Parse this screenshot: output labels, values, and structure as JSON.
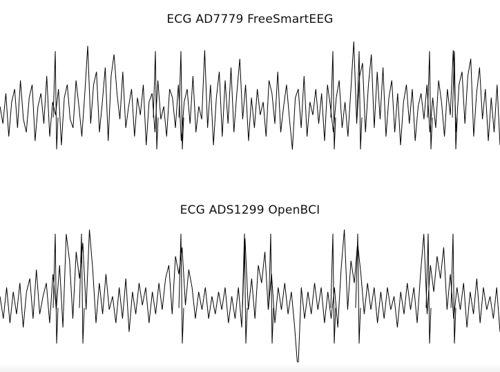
{
  "chart_data": [
    {
      "type": "line",
      "title": "ECG AD7779 FreeSmartEEG",
      "xlabel": "",
      "ylabel": "",
      "grid": false,
      "axes_visible": false,
      "color": "#000000",
      "beats": [
        80,
        225,
        262,
        482,
        520,
        622,
        658
      ],
      "ylim": [
        -1.6,
        1.6
      ],
      "series": [
        {
          "values": [
            0.1,
            -0.3,
            0.4,
            -0.6,
            0.2,
            0.5,
            -0.4,
            0.7,
            -0.2,
            -0.5,
            0.3,
            0.6,
            -0.7,
            0.1,
            0.4,
            -0.3,
            0.8,
            -0.6,
            0.2,
            -0.1,
            0.5,
            -0.8,
            0.3,
            0.6,
            -0.2,
            -0.4,
            0.7,
            0.1,
            -0.6,
            0.4,
            1.5,
            -0.3,
            0.6,
            0.9,
            -0.5,
            0.2,
            1.0,
            -0.7,
            0.8,
            1.3,
            0.4,
            -0.2,
            0.9,
            -0.4,
            0.1,
            0.5,
            -0.6,
            0.3,
            -0.1,
            0.6,
            -0.8,
            0.2,
            0.4,
            -0.5,
            0.7,
            -0.2,
            0.1,
            -0.6,
            0.5,
            0.3,
            -0.4,
            0.6,
            -0.7,
            0.2,
            0.5,
            -0.3,
            0.8,
            -0.5,
            0.1,
            -0.2,
            1.4,
            -0.4,
            0.6,
            -0.8,
            0.3,
            0.9,
            -0.6,
            0.7,
            -0.3,
            1.0,
            -0.5,
            0.4,
            1.2,
            -0.2,
            0.6,
            -0.7,
            0.3,
            -0.4,
            0.5,
            -0.1,
            0.2,
            -0.6,
            0.7,
            0.4,
            -0.3,
            0.9,
            -0.5,
            0.1,
            0.6,
            -0.2,
            -0.9,
            0.3,
            0.5,
            -0.4,
            0.8,
            -0.6,
            0.2,
            -0.1,
            0.5,
            -0.3,
            0.4,
            -0.7,
            0.6,
            0.1,
            -0.5,
            0.3,
            0.7,
            -0.4,
            0.2,
            -0.6,
            0.5,
            1.6,
            -0.3,
            0.8,
            1.1,
            -0.5,
            0.6,
            1.3,
            -0.4,
            0.9,
            -0.2,
            1.0,
            -0.6,
            0.3,
            0.7,
            -0.5,
            0.4,
            -0.8,
            0.2,
            0.6,
            -0.3,
            0.5,
            -0.7,
            0.1,
            0.4,
            -0.2,
            0.6,
            -0.5,
            0.3,
            -0.4,
            0.7,
            0.2,
            -0.6,
            0.5,
            -0.1,
            1.4,
            -0.5,
            0.6,
            0.9,
            -0.3,
            0.8,
            1.2,
            -0.6,
            0.4,
            1.0,
            -0.2,
            0.5,
            -0.7,
            0.3,
            -0.5,
            0.6,
            -0.8
          ]
        }
      ]
    },
    {
      "type": "line",
      "title": "ECG ADS1299 OpenBCI",
      "xlabel": "",
      "ylabel": "",
      "grid": false,
      "axes_visible": false,
      "color": "#000000",
      "beats": [
        80,
        118,
        262,
        354,
        392,
        482,
        518,
        620,
        656
      ],
      "ylim": [
        -1.6,
        1.6
      ],
      "series": [
        {
          "values": [
            0.1,
            -0.4,
            0.3,
            -0.5,
            0.2,
            -0.3,
            0.4,
            -0.6,
            0.2,
            0.5,
            -0.4,
            0.7,
            -0.3,
            0.1,
            0.4,
            -0.5,
            0.6,
            -0.2,
            0.8,
            -0.6,
            1.5,
            0.9,
            -0.4,
            1.1,
            0.5,
            1.3,
            -0.2,
            1.6,
            0.7,
            -0.5,
            0.4,
            -0.3,
            0.6,
            -0.2,
            0.1,
            -0.5,
            0.3,
            -0.4,
            0.5,
            -0.7,
            0.2,
            -0.3,
            0.4,
            -0.1,
            0.3,
            -0.5,
            0.2,
            -0.3,
            0.4,
            -0.2,
            0.5,
            0.8,
            -0.3,
            1.0,
            0.6,
            1.2,
            -0.1,
            0.7,
            0.3,
            -0.4,
            0.2,
            -0.2,
            0.3,
            -0.4,
            0.1,
            -0.3,
            0.2,
            -0.2,
            0.3,
            -0.5,
            0.1,
            -0.4,
            0.3,
            -0.6,
            1.4,
            -0.2,
            0.5,
            -0.4,
            0.8,
            0.4,
            1.1,
            -0.2,
            0.6,
            -0.5,
            0.3,
            -0.2,
            0.4,
            -0.3,
            0.2,
            -0.6,
            -1.6,
            0.3,
            -0.4,
            0.2,
            -0.3,
            0.4,
            -0.2,
            0.3,
            -0.5,
            0.2,
            -0.4,
            0.3,
            -0.6,
            0.7,
            1.6,
            -0.2,
            0.9,
            0.4,
            1.3,
            0.6,
            -0.3,
            0.4,
            -0.2,
            0.3,
            -0.5,
            0.2,
            -0.4,
            0.3,
            -0.2,
            0.1,
            -0.6,
            0.2,
            -0.3,
            0.4,
            -0.2,
            0.3,
            -0.5,
            0.6,
            1.5,
            -0.3,
            0.8,
            0.2,
            1.0,
            0.5,
            1.2,
            -0.2,
            0.6,
            -0.4,
            0.3,
            -0.2,
            0.4,
            -0.6,
            0.2,
            -0.3,
            0.5,
            -0.5,
            0.3,
            -0.2,
            0.1,
            -0.4,
            0.3,
            -0.7
          ]
        }
      ]
    }
  ]
}
